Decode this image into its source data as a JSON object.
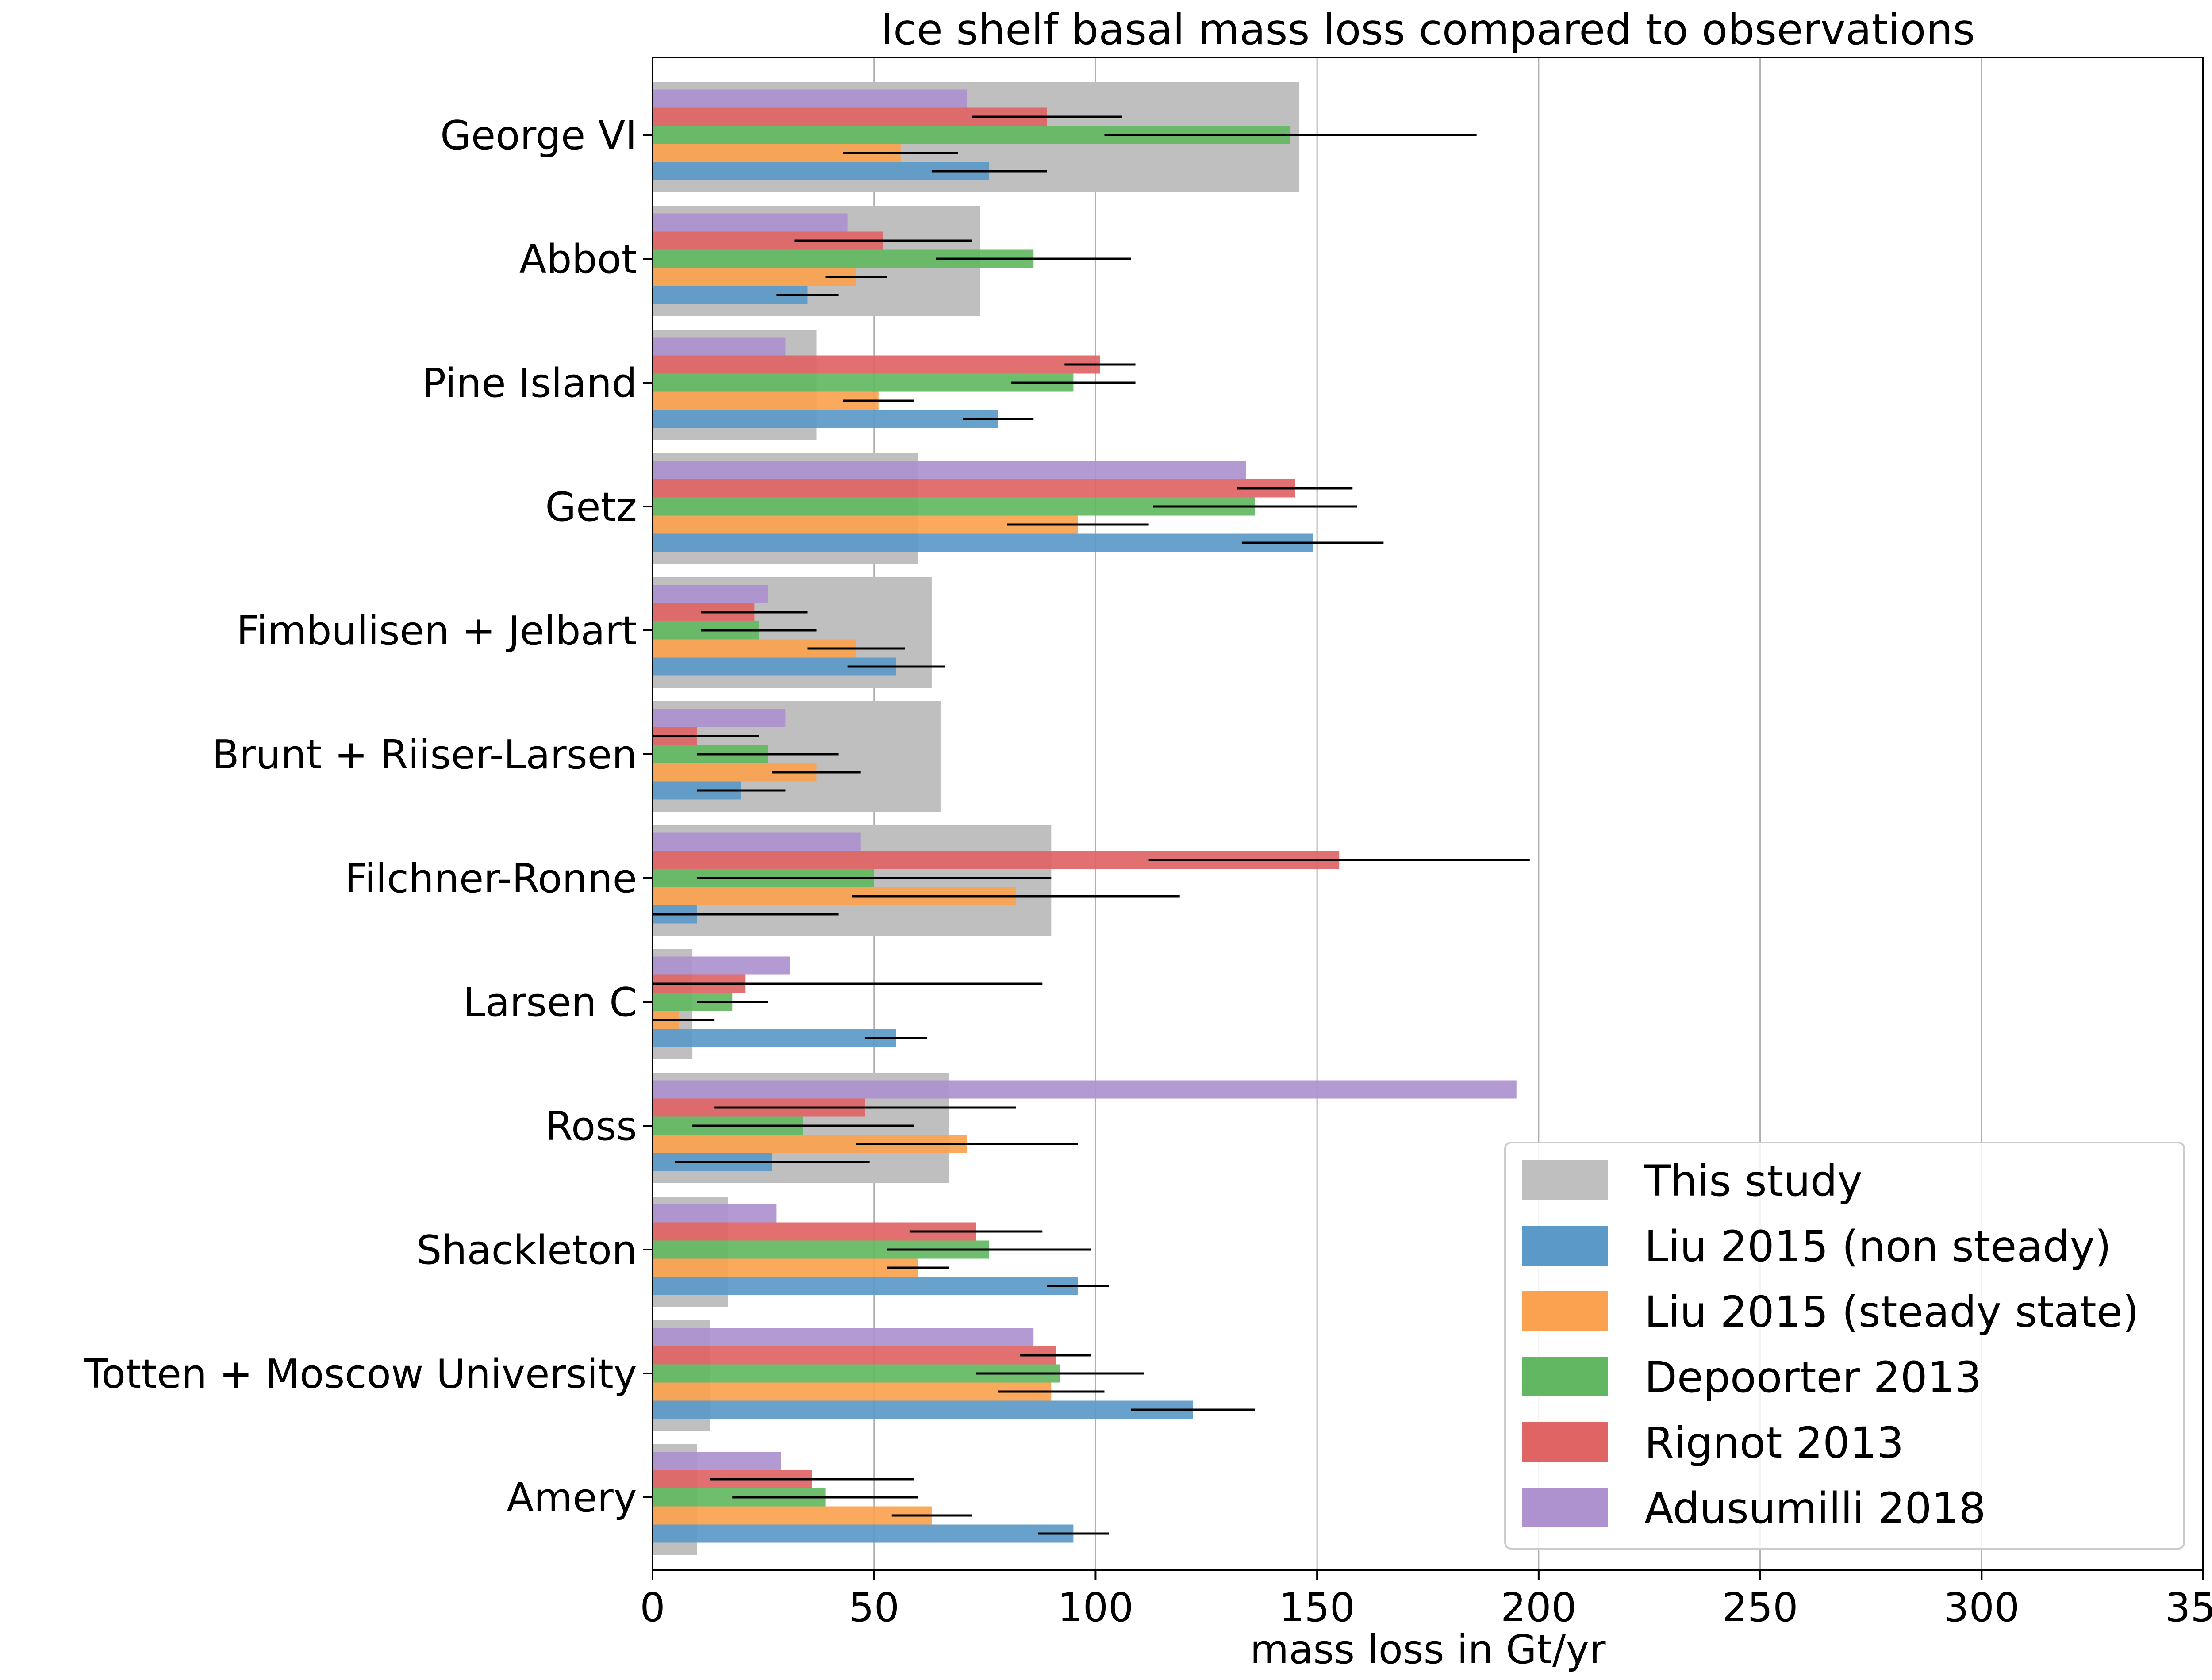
{
  "chart_data": {
    "type": "bar",
    "orientation": "horizontal",
    "title": "Ice shelf basal mass loss compared to observations",
    "xlabel": "mass loss in Gt/yr",
    "ylabel": "",
    "xlim": [
      0,
      350
    ],
    "xticks": [
      0,
      50,
      100,
      150,
      200,
      250,
      300,
      350
    ],
    "grid": "vertical",
    "legend_position": "bottom-right",
    "categories": [
      "George VI",
      "Abbot",
      "Pine Island",
      "Getz",
      "Fimbulisen + Jelbart",
      "Brunt + Riiser-Larsen",
      "Filchner-Ronne",
      "Larsen C",
      "Ross",
      "Shackleton",
      "Totten + Moscow University",
      "Amery"
    ],
    "background_series": {
      "name": "This study",
      "color": "#bfbfbf",
      "values": [
        146,
        74,
        37,
        60,
        63,
        65,
        90,
        9,
        67,
        17,
        13,
        10
      ]
    },
    "series": [
      {
        "name": "Liu 2015 (non steady)",
        "color": "#5b9ac8",
        "values": [
          76,
          35,
          78,
          149,
          55,
          20,
          10,
          55,
          27,
          96,
          122,
          95
        ],
        "errors": [
          13,
          7,
          8,
          16,
          11,
          10,
          32,
          7,
          22,
          7,
          14,
          8
        ]
      },
      {
        "name": "Liu 2015 (steady state)",
        "color": "#faa24f",
        "values": [
          56,
          46,
          51,
          96,
          46,
          37,
          82,
          6,
          71,
          60,
          90,
          63
        ],
        "errors": [
          13,
          7,
          8,
          16,
          11,
          10,
          37,
          8,
          25,
          7,
          12,
          9
        ]
      },
      {
        "name": "Depoorter 2013",
        "color": "#62b862",
        "values": [
          144,
          86,
          95,
          136,
          24,
          26,
          50,
          18,
          34,
          76,
          92,
          39
        ],
        "errors": [
          42,
          22,
          14,
          23,
          13,
          16,
          40,
          8,
          25,
          23,
          19,
          21
        ]
      },
      {
        "name": "Rignot 2013",
        "color": "#e06464",
        "values": [
          89,
          52,
          101,
          145,
          23,
          10,
          155,
          21,
          48,
          73,
          91,
          36
        ],
        "errors": [
          17,
          20,
          8,
          13,
          12,
          14,
          43,
          67,
          34,
          15,
          8,
          23
        ]
      },
      {
        "name": "Adusumilli 2018",
        "color": "#ae91cf",
        "values": [
          71,
          44,
          30,
          134,
          26,
          30,
          47,
          31,
          195,
          28,
          86,
          29
        ],
        "errors": null
      }
    ]
  }
}
